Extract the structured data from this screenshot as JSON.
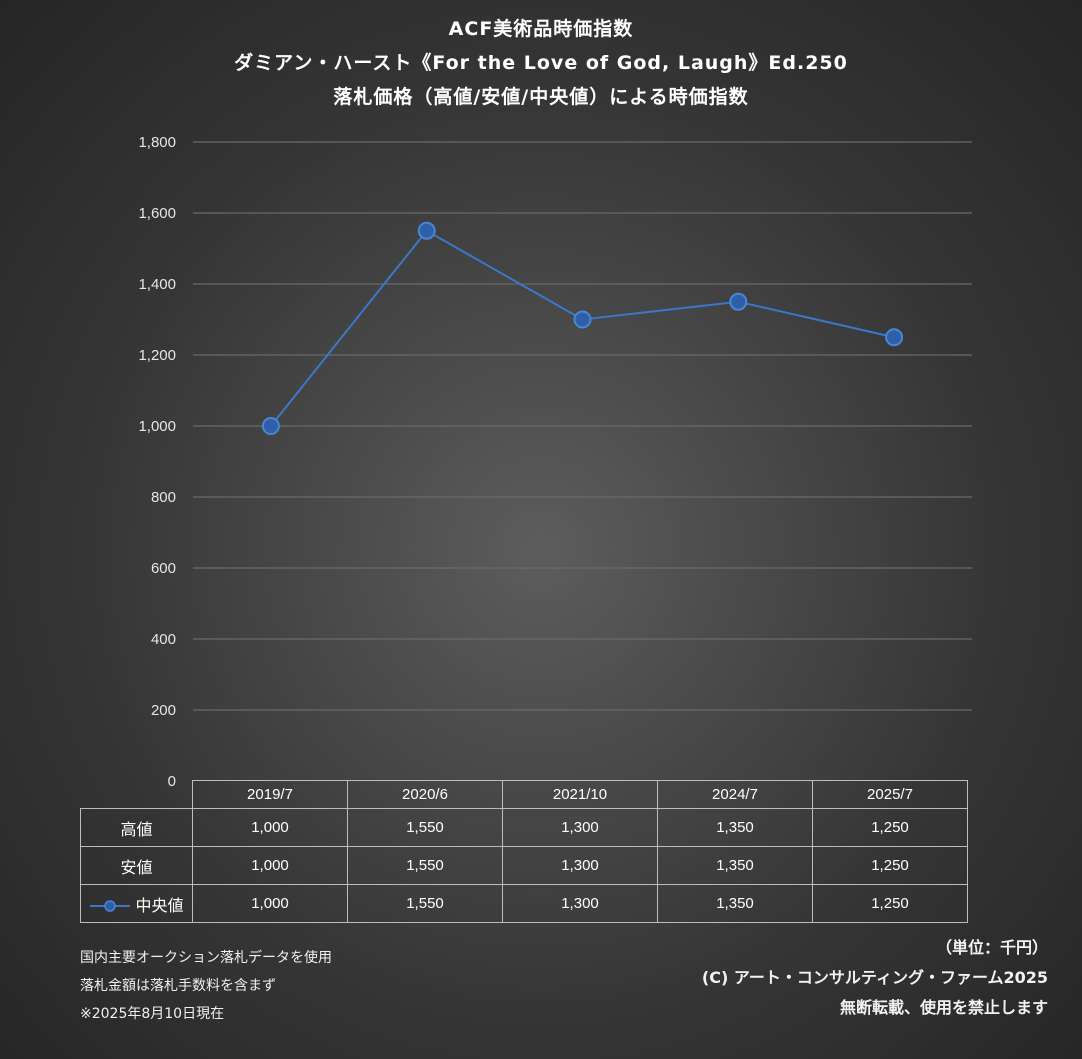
{
  "chart_data": {
    "type": "line",
    "title": [
      "ACF美術品時価指数",
      "ダミアン・ハースト《For the Love of God, Laugh》Ed.250",
      "落札価格（高値/安値/中央値）による時価指数"
    ],
    "categories": [
      "2019/7",
      "2020/6",
      "2021/10",
      "2024/7",
      "2025/7"
    ],
    "series": [
      {
        "name": "高値",
        "values": [
          1000,
          1550,
          1300,
          1350,
          1250
        ],
        "labels": [
          "1,000",
          "1,550",
          "1,300",
          "1,350",
          "1,250"
        ],
        "plotted": false
      },
      {
        "name": "安値",
        "values": [
          1000,
          1550,
          1300,
          1350,
          1250
        ],
        "labels": [
          "1,000",
          "1,550",
          "1,300",
          "1,350",
          "1,250"
        ],
        "plotted": false
      },
      {
        "name": "中央値",
        "values": [
          1000,
          1550,
          1300,
          1350,
          1250
        ],
        "labels": [
          "1,000",
          "1,550",
          "1,300",
          "1,350",
          "1,250"
        ],
        "plotted": true,
        "color": "#2e5fa8",
        "line_color": "#3a78c8"
      }
    ],
    "yticks": [
      {
        "v": 0,
        "label": "0"
      },
      {
        "v": 200,
        "label": "200"
      },
      {
        "v": 400,
        "label": "400"
      },
      {
        "v": 600,
        "label": "600"
      },
      {
        "v": 800,
        "label": "800"
      },
      {
        "v": 1000,
        "label": "1,000"
      },
      {
        "v": 1200,
        "label": "1,200"
      },
      {
        "v": 1400,
        "label": "1,400"
      },
      {
        "v": 1600,
        "label": "1,600"
      },
      {
        "v": 1800,
        "label": "1,800"
      }
    ],
    "ylim": [
      0,
      1800
    ],
    "grid": true,
    "legend": "data-table",
    "unit": "（単位：千円）"
  },
  "notes_left": [
    "国内主要オークション落札データを使用",
    "落札金額は落札手数料を含まず",
    "※2025年8月10日現在"
  ],
  "notes_right": {
    "unit": "（単位：千円）",
    "copyright": "(C) アート・コンサルティング・ファーム2025",
    "disclaimer": "無断転載、使用を禁止します"
  },
  "colors": {
    "gridline": "#6a6a6a",
    "line": "#3a78c8",
    "marker_fill": "#2e5fa8",
    "table_border": "#bdbdbd"
  }
}
